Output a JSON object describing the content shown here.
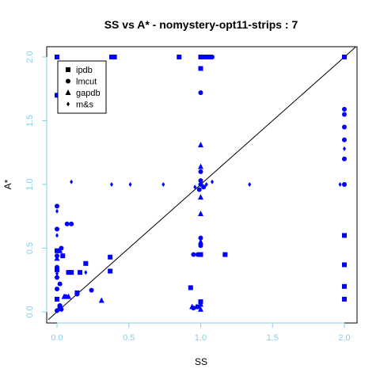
{
  "chart_data": {
    "type": "scatter",
    "title": "SS vs A* - nomystery-opt11-strips : 7",
    "xlabel": "SS",
    "ylabel": "A*",
    "xlim": [
      0,
      2
    ],
    "ylim": [
      0,
      2
    ],
    "x_ticks": [
      "0.0",
      "0.5",
      "1.0",
      "1.5",
      "2.0"
    ],
    "y_ticks": [
      "0.0",
      "0.5",
      "1.0",
      "1.5",
      "2.0"
    ],
    "grid": false,
    "legend_position": "top-left",
    "point_color": "#0000ff",
    "tick_color": "#87ceeb",
    "diagonal_line": true,
    "series": [
      {
        "name": "ipdb",
        "marker": "square",
        "points": [
          [
            0,
            2.0
          ],
          [
            0.4,
            2.0
          ],
          [
            0.38,
            2.0
          ],
          [
            0.85,
            2.0
          ],
          [
            1.0,
            2.0
          ],
          [
            1.03,
            2.0
          ],
          [
            1.06,
            2.0
          ],
          [
            1.0,
            1.91
          ],
          [
            0,
            1.7
          ],
          [
            2.0,
            2.0
          ],
          [
            0,
            0.48
          ],
          [
            0.04,
            0.44
          ],
          [
            0.37,
            0.43
          ],
          [
            0.08,
            0.31
          ],
          [
            0.1,
            0.31
          ],
          [
            0.2,
            0.38
          ],
          [
            0.16,
            0.31
          ],
          [
            0.14,
            0.15
          ],
          [
            0.37,
            0.32
          ],
          [
            1.0,
            0.45
          ],
          [
            1.17,
            0.45
          ],
          [
            0.93,
            0.19
          ],
          [
            1.0,
            0.08
          ],
          [
            2.0,
            0.6
          ],
          [
            2.0,
            0.37
          ],
          [
            2.0,
            0.2
          ],
          [
            2.0,
            0.1
          ],
          [
            0,
            0.33
          ],
          [
            0.02,
            0.04
          ],
          [
            0,
            0.1
          ]
        ]
      },
      {
        "name": "lmcut",
        "marker": "circle",
        "points": [
          [
            0,
            0.83
          ],
          [
            0,
            0.65
          ],
          [
            0.07,
            0.69
          ],
          [
            0.1,
            0.69
          ],
          [
            0.03,
            0.5
          ],
          [
            0,
            0.44
          ],
          [
            0,
            0.35
          ],
          [
            0,
            0.27
          ],
          [
            0.02,
            0.22
          ],
          [
            0,
            0.18
          ],
          [
            0.06,
            0.12
          ],
          [
            0.14,
            0.14
          ],
          [
            0.24,
            0.17
          ],
          [
            0.02,
            0.05
          ],
          [
            0.03,
            0.02
          ],
          [
            0,
            0.01
          ],
          [
            1.0,
            1.72
          ],
          [
            1.0,
            1.1
          ],
          [
            1.0,
            1.03
          ],
          [
            1.0,
            1.0
          ],
          [
            0.99,
            0.96
          ],
          [
            1.02,
            0.98
          ],
          [
            1.0,
            0.58
          ],
          [
            1.0,
            0.52
          ],
          [
            0.95,
            0.45
          ],
          [
            0.98,
            0.45
          ],
          [
            0.95,
            0.03
          ],
          [
            0.98,
            0.04
          ],
          [
            1.0,
            2.0
          ],
          [
            1.05,
            2.0
          ],
          [
            1.08,
            2.0
          ],
          [
            2.0,
            1.59
          ],
          [
            2.0,
            1.55
          ],
          [
            2.0,
            1.45
          ],
          [
            2.0,
            1.35
          ],
          [
            2.0,
            1.2
          ],
          [
            2.0,
            1.0
          ]
        ]
      },
      {
        "name": "gapdb",
        "marker": "triangle",
        "points": [
          [
            0,
            0.42
          ],
          [
            0.02,
            0.48
          ],
          [
            0.08,
            0.12
          ],
          [
            0.05,
            0.12
          ],
          [
            0.31,
            0.09
          ],
          [
            0.94,
            0.04
          ],
          [
            0.97,
            0.04
          ],
          [
            1.0,
            0.02
          ],
          [
            1.0,
            0.06
          ],
          [
            1.0,
            1.31
          ],
          [
            1.0,
            1.14
          ],
          [
            1.0,
            0.9
          ],
          [
            1.0,
            0.77
          ],
          [
            1.0,
            0.55
          ]
        ]
      },
      {
        "name": "m&s",
        "marker": "cross",
        "points": [
          [
            0.1,
            1.02
          ],
          [
            0.38,
            1.0
          ],
          [
            0.51,
            1.0
          ],
          [
            0.74,
            1.0
          ],
          [
            0.96,
            0.98
          ],
          [
            1.04,
            1.0
          ],
          [
            1.08,
            1.02
          ],
          [
            1.34,
            1.0
          ],
          [
            1.97,
            1.0
          ],
          [
            2.0,
            1.28
          ],
          [
            0,
            0.79
          ],
          [
            0,
            0.6
          ],
          [
            0,
            0.3
          ],
          [
            0.2,
            0.31
          ]
        ]
      }
    ]
  }
}
